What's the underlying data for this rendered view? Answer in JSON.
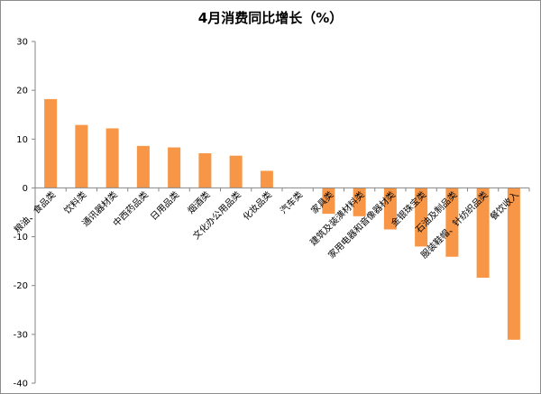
{
  "chart_data": {
    "type": "bar",
    "title": "4月消费同比增长（%）",
    "xlabel": "",
    "ylabel": "",
    "categories": [
      "粮油、食品类",
      "饮料类",
      "通讯器材类",
      "中西药品类",
      "日用品类",
      "烟酒类",
      "文化办公用品类",
      "化妆品类",
      "汽车类",
      "家具类",
      "建筑及装潢材料类",
      "家用电器和音像器材类",
      "金银珠宝类",
      "石油及制品类",
      "服装鞋帽、针纺织品类",
      "餐饮收入"
    ],
    "values": [
      18.2,
      12.9,
      12.2,
      8.6,
      8.3,
      7.1,
      6.6,
      3.5,
      0.0,
      -5.3,
      -5.8,
      -8.5,
      -12.0,
      -14.1,
      -18.4,
      -31.1
    ],
    "ylim": [
      -40,
      30
    ],
    "yticks": [
      30,
      20,
      10,
      0,
      -10,
      -20,
      -30,
      -40
    ],
    "grid": false,
    "legend": "none",
    "bar_color": "#f79646"
  }
}
